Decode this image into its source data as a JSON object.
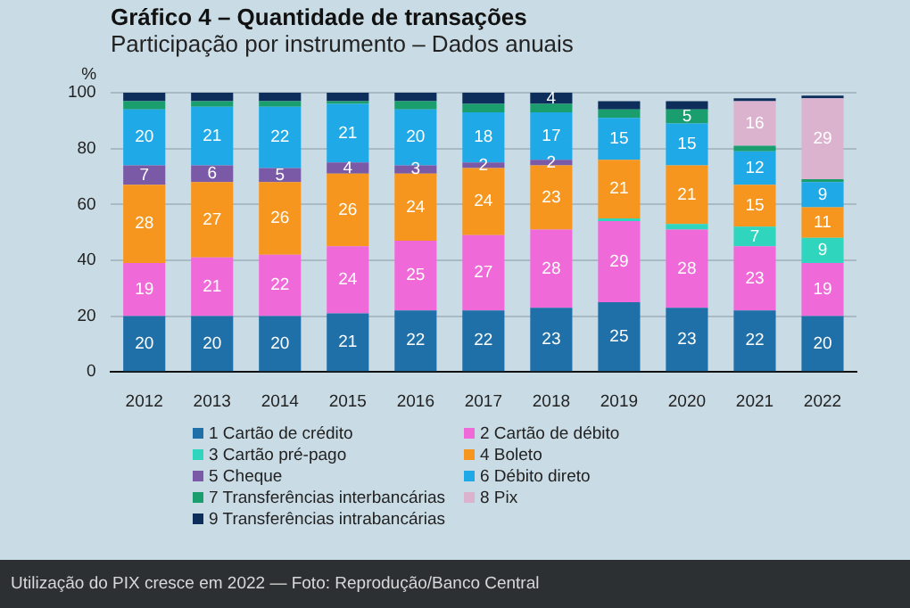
{
  "chart_data": {
    "type": "bar",
    "stacked": true,
    "title": "Gráfico 4 – Quantidade de transações",
    "subtitle": "Participação por instrumento – Dados anuais",
    "ylabel": "%",
    "categories": [
      "2012",
      "2013",
      "2014",
      "2015",
      "2016",
      "2017",
      "2018",
      "2019",
      "2020",
      "2021",
      "2022"
    ],
    "ylim": [
      0,
      100
    ],
    "yticks": [
      0,
      20,
      40,
      60,
      80,
      100
    ],
    "grid": "y",
    "legend": "bottom",
    "series": [
      {
        "name": "1 Cartão de crédito",
        "color": "#1f6fa8",
        "values": [
          20,
          20,
          20,
          21,
          22,
          22,
          23,
          25,
          23,
          22,
          20
        ],
        "value_labels": [
          "20",
          "20",
          "20",
          "21",
          "22",
          "22",
          "23",
          "25",
          "23",
          "22",
          "20"
        ]
      },
      {
        "name": "2 Cartão de débito",
        "color": "#ef6ad8",
        "values": [
          19,
          21,
          22,
          24,
          25,
          27,
          28,
          29,
          28,
          23,
          19
        ],
        "value_labels": [
          "19",
          "21",
          "22",
          "24",
          "25",
          "27",
          "28",
          "29",
          "28",
          "23",
          "19"
        ]
      },
      {
        "name": "3 Cartão pré-pago",
        "color": "#2fd6bd",
        "values": [
          0,
          0,
          0,
          0,
          0,
          0,
          0,
          1,
          2,
          7,
          9
        ],
        "value_labels": [
          null,
          null,
          null,
          null,
          null,
          null,
          null,
          null,
          null,
          "7",
          "9"
        ]
      },
      {
        "name": "4 Boleto",
        "color": "#f7961e",
        "values": [
          28,
          27,
          26,
          26,
          24,
          24,
          23,
          21,
          21,
          15,
          11
        ],
        "value_labels": [
          "28",
          "27",
          "26",
          "26",
          "24",
          "24",
          "23",
          "21",
          "21",
          "15",
          "11"
        ]
      },
      {
        "name": "5 Cheque",
        "color": "#7a5aa6",
        "values": [
          7,
          6,
          5,
          4,
          3,
          2,
          2,
          0,
          0,
          0,
          0
        ],
        "value_labels": [
          "7",
          "6",
          "5",
          "4",
          "3",
          "2",
          "2",
          null,
          null,
          null,
          null
        ]
      },
      {
        "name": "6 Débito direto",
        "color": "#1fa9e6",
        "values": [
          20,
          21,
          22,
          21,
          20,
          18,
          17,
          15,
          15,
          12,
          9
        ],
        "value_labels": [
          "20",
          "21",
          "22",
          "21",
          "20",
          "18",
          "17",
          "15",
          "15",
          "12",
          "9"
        ]
      },
      {
        "name": "7 Transferências interbancárias",
        "color": "#1a9e6e",
        "values": [
          3,
          2,
          2,
          1,
          3,
          3,
          3,
          3,
          5,
          2,
          1
        ],
        "value_labels": [
          null,
          null,
          null,
          null,
          null,
          null,
          null,
          null,
          "5",
          null,
          null
        ]
      },
      {
        "name": "8 Pix",
        "color": "#dcb3cf",
        "values": [
          0,
          0,
          0,
          0,
          0,
          0,
          0,
          0,
          0,
          16,
          29
        ],
        "value_labels": [
          null,
          null,
          null,
          null,
          null,
          null,
          null,
          null,
          null,
          "16",
          "29"
        ]
      },
      {
        "name": "9 Transferências intrabancárias",
        "color": "#0d2d5a",
        "values": [
          3,
          3,
          3,
          3,
          3,
          4,
          4,
          3,
          3,
          1,
          1
        ],
        "value_labels": [
          null,
          null,
          null,
          null,
          null,
          null,
          "4",
          null,
          null,
          null,
          null
        ]
      }
    ],
    "annotations": [
      "Utilização do PIX cresce em 2022 — Foto: Reprodução/Banco Central"
    ]
  }
}
